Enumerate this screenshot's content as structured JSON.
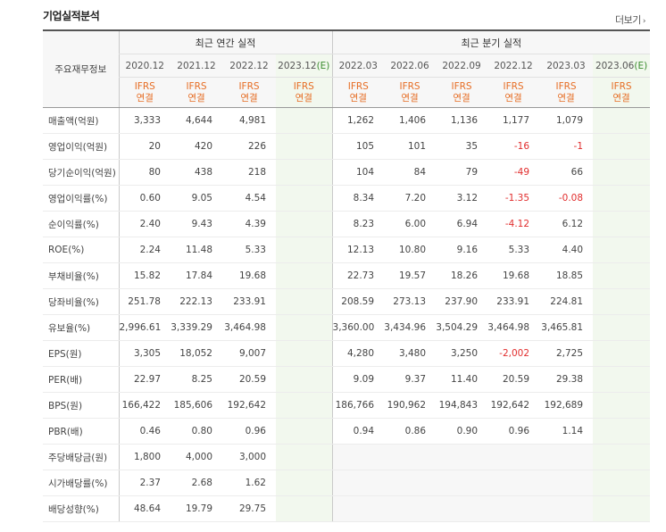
{
  "section_title": "기업실적분석",
  "more_link": "더보기",
  "header": {
    "row_label": "주요재무정보",
    "annual_group": "최근 연간 실적",
    "quarter_group": "최근 분기 실적",
    "annual_periods": [
      "2020.12",
      "2021.12",
      "2022.12",
      "2023.12"
    ],
    "annual_est_suffix": "(E)",
    "quarter_periods": [
      "2022.03",
      "2022.06",
      "2022.09",
      "2022.12",
      "2023.03",
      "2023.06"
    ],
    "quarter_est_suffix": "(E)",
    "ifrs": "IFRS",
    "consolidated": "연결"
  },
  "rows": [
    {
      "label": "매출액(억원)",
      "values": [
        "3,333",
        "4,644",
        "4,981",
        "",
        "1,262",
        "1,406",
        "1,136",
        "1,177",
        "1,079",
        ""
      ]
    },
    {
      "label": "영업이익(억원)",
      "values": [
        "20",
        "420",
        "226",
        "",
        "105",
        "101",
        "35",
        "-16",
        "-1",
        ""
      ]
    },
    {
      "label": "당기순이익(억원)",
      "values": [
        "80",
        "438",
        "218",
        "",
        "104",
        "84",
        "79",
        "-49",
        "66",
        ""
      ]
    },
    {
      "label": "영업이익률(%)",
      "values": [
        "0.60",
        "9.05",
        "4.54",
        "",
        "8.34",
        "7.20",
        "3.12",
        "-1.35",
        "-0.08",
        ""
      ]
    },
    {
      "label": "순이익률(%)",
      "values": [
        "2.40",
        "9.43",
        "4.39",
        "",
        "8.23",
        "6.00",
        "6.94",
        "-4.12",
        "6.12",
        ""
      ]
    },
    {
      "label": "ROE(%)",
      "values": [
        "2.24",
        "11.48",
        "5.33",
        "",
        "12.13",
        "10.80",
        "9.16",
        "5.33",
        "4.40",
        ""
      ]
    },
    {
      "label": "부채비율(%)",
      "values": [
        "15.82",
        "17.84",
        "19.68",
        "",
        "22.73",
        "19.57",
        "18.26",
        "19.68",
        "18.85",
        ""
      ]
    },
    {
      "label": "당좌비율(%)",
      "values": [
        "251.78",
        "222.13",
        "233.91",
        "",
        "208.59",
        "273.13",
        "237.90",
        "233.91",
        "224.81",
        ""
      ]
    },
    {
      "label": "유보율(%)",
      "values": [
        "2,996.61",
        "3,339.29",
        "3,464.98",
        "",
        "3,360.00",
        "3,434.96",
        "3,504.29",
        "3,464.98",
        "3,465.81",
        ""
      ]
    },
    {
      "label": "EPS(원)",
      "values": [
        "3,305",
        "18,052",
        "9,007",
        "",
        "4,280",
        "3,480",
        "3,250",
        "-2,002",
        "2,725",
        ""
      ]
    },
    {
      "label": "PER(배)",
      "values": [
        "22.97",
        "8.25",
        "20.59",
        "",
        "9.09",
        "9.37",
        "11.40",
        "20.59",
        "29.38",
        ""
      ]
    },
    {
      "label": "BPS(원)",
      "values": [
        "166,422",
        "185,606",
        "192,642",
        "",
        "186,766",
        "190,962",
        "194,843",
        "192,642",
        "192,689",
        ""
      ]
    },
    {
      "label": "PBR(배)",
      "values": [
        "0.46",
        "0.80",
        "0.96",
        "",
        "0.94",
        "0.86",
        "0.90",
        "0.96",
        "1.14",
        ""
      ]
    },
    {
      "label": "주당배당금(원)",
      "values": [
        "1,800",
        "4,000",
        "3,000",
        "",
        "",
        "",
        "",
        "",
        "",
        ""
      ]
    },
    {
      "label": "시가배당률(%)",
      "values": [
        "2.37",
        "2.68",
        "1.62",
        "",
        "",
        "",
        "",
        "",
        "",
        ""
      ]
    },
    {
      "label": "배당성향(%)",
      "values": [
        "48.64",
        "19.79",
        "29.75",
        "",
        "",
        "",
        "",
        "",
        "",
        ""
      ]
    }
  ],
  "colors": {
    "accent_orange": "#e66d24",
    "negative_red": "#e12d2d",
    "estimate_green": "#3a8c2e",
    "estimate_bg": "#f2f8ee"
  }
}
